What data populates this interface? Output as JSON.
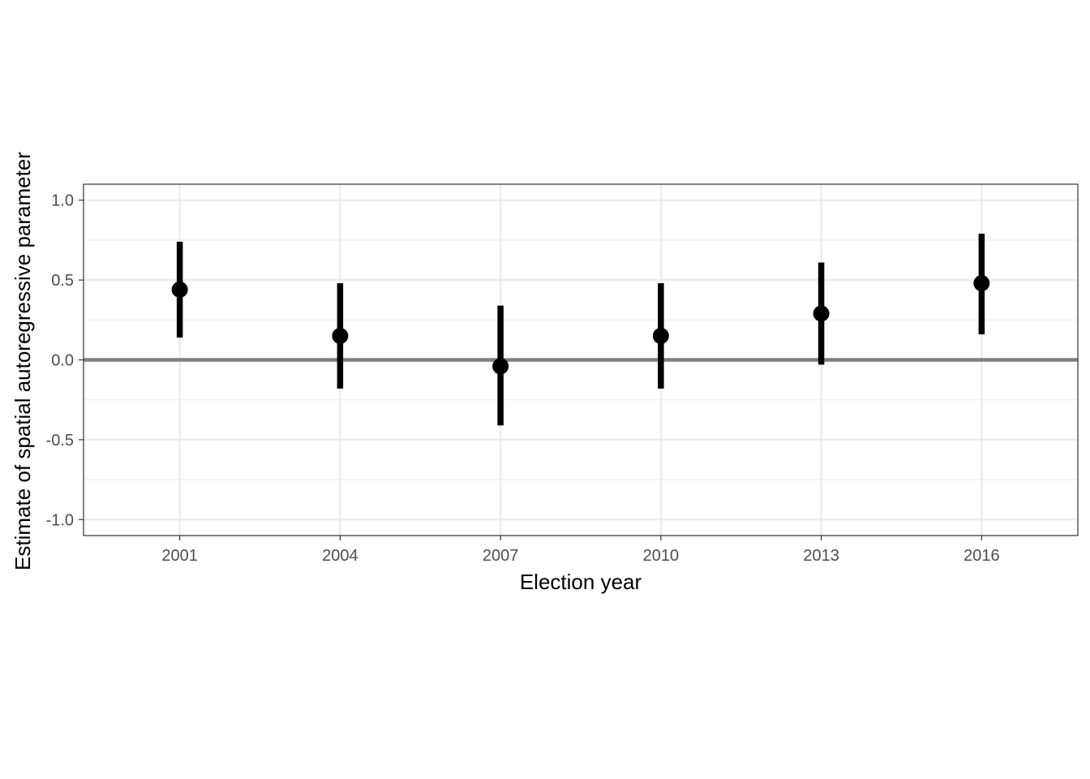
{
  "chart_data": {
    "type": "scatter",
    "xlabel": "Election year",
    "ylabel": "Estimate of spatial autoregressive parameter",
    "categories": [
      "2001",
      "2004",
      "2007",
      "2010",
      "2013",
      "2016"
    ],
    "series": [
      {
        "estimates": [
          0.44,
          0.15,
          -0.04,
          0.15,
          0.29,
          0.48
        ],
        "lower": [
          0.14,
          -0.18,
          -0.41,
          -0.18,
          -0.03,
          0.16
        ],
        "upper": [
          0.74,
          0.48,
          0.34,
          0.48,
          0.61,
          0.79
        ]
      }
    ],
    "reference_line": 0.0,
    "ylim": [
      -1.1,
      1.1
    ],
    "yticks": [
      -1.0,
      -0.5,
      0.0,
      0.5,
      1.0
    ],
    "ytick_labels": [
      "-1.0",
      "-0.5",
      "0.0",
      "0.5",
      "1.0"
    ],
    "grid": true,
    "legend": "none",
    "colors": {
      "point": "#000000",
      "reference_line": "#7f7f7f",
      "grid": "#ebebeb",
      "panel_border": "#333333"
    }
  }
}
